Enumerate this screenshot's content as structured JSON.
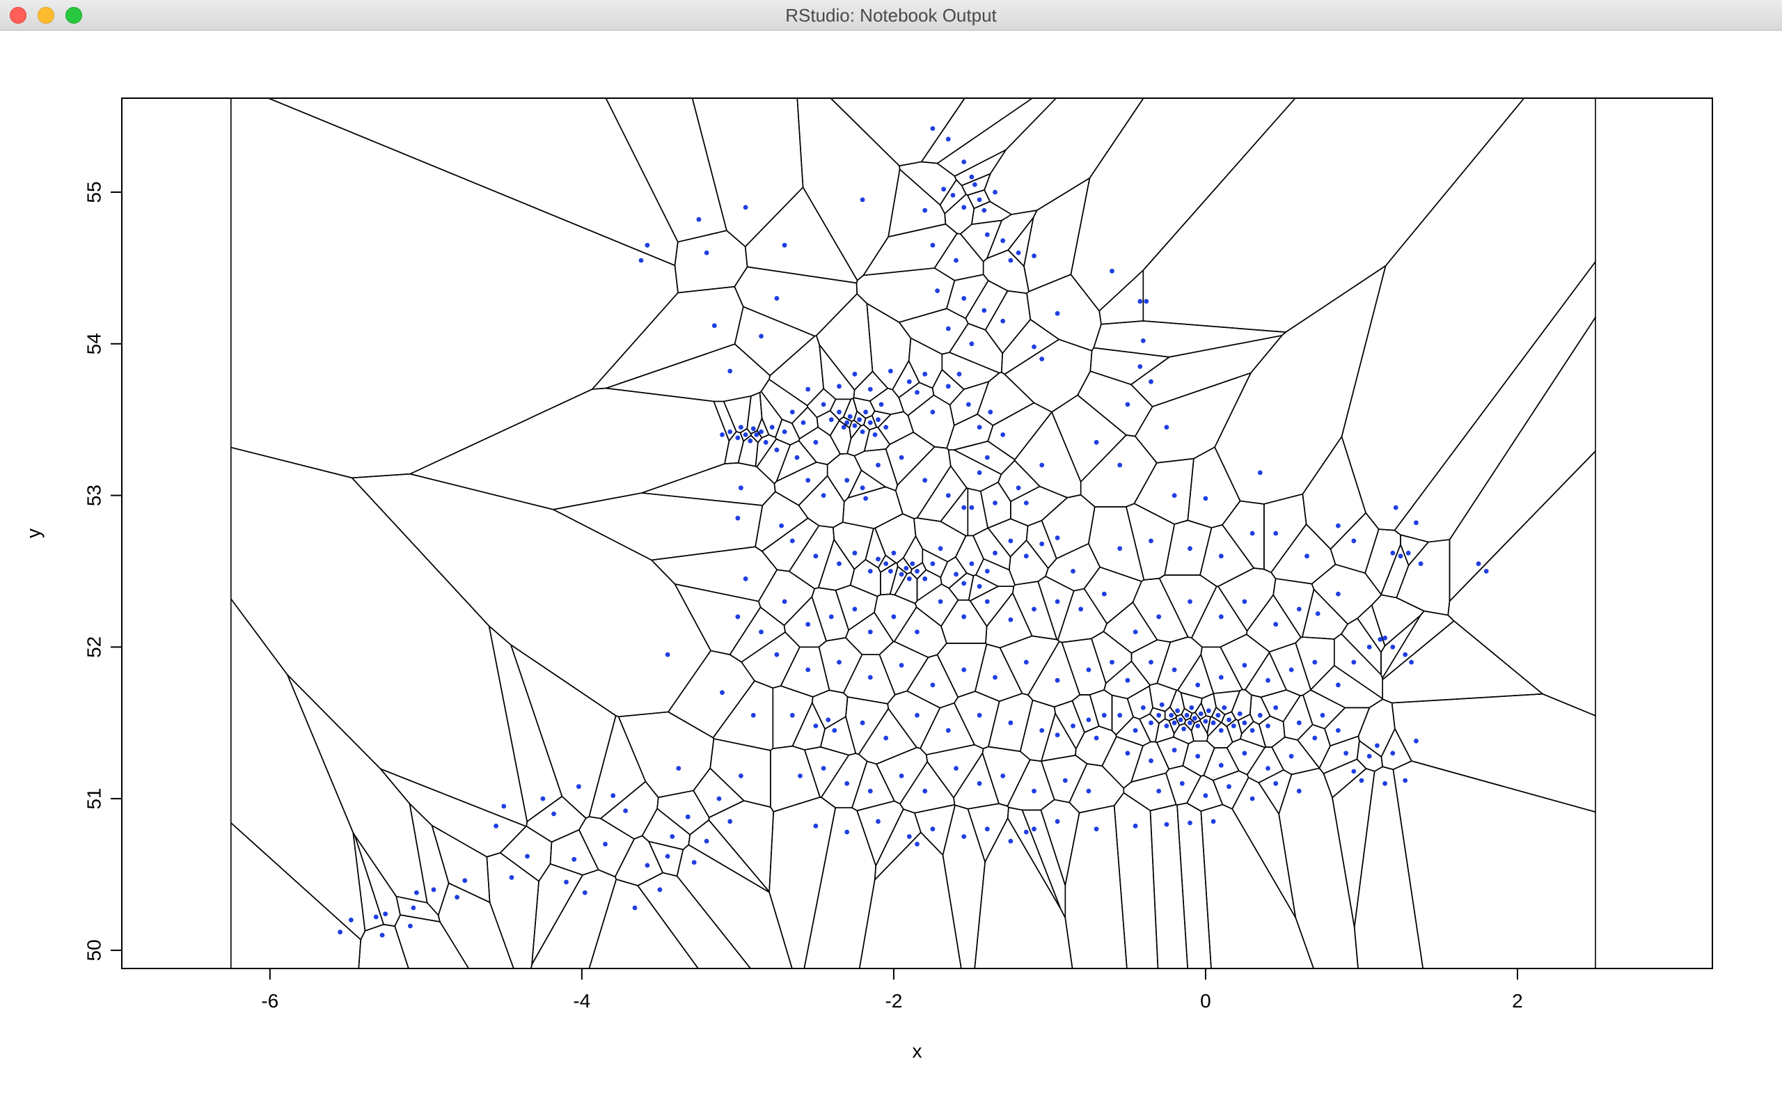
{
  "window": {
    "title": "RStudio: Notebook Output"
  },
  "chart_data": {
    "type": "scatter",
    "title": "",
    "xlabel": "x",
    "ylabel": "y",
    "xlim": [
      -6.95,
      3.25
    ],
    "ylim": [
      49.88,
      55.62
    ],
    "xticks": [
      -6,
      -4,
      -2,
      0,
      2
    ],
    "yticks": [
      50,
      51,
      52,
      53,
      54,
      55
    ],
    "grid": false,
    "point_color": "#1f3fe0",
    "overlay": "voronoi-tessellation",
    "overlay_color": "#000000",
    "overlay_bounds": {
      "x": [
        -6.25,
        2.5
      ],
      "y": [
        49.88,
        55.62
      ]
    },
    "points": [
      [
        -5.55,
        50.12
      ],
      [
        -5.48,
        50.2
      ],
      [
        -5.32,
        50.22
      ],
      [
        -5.28,
        50.1
      ],
      [
        -5.26,
        50.24
      ],
      [
        -5.08,
        50.28
      ],
      [
        -5.06,
        50.38
      ],
      [
        -5.1,
        50.16
      ],
      [
        -4.95,
        50.4
      ],
      [
        -4.8,
        50.35
      ],
      [
        -4.75,
        50.46
      ],
      [
        -4.55,
        50.82
      ],
      [
        -4.5,
        50.95
      ],
      [
        -4.45,
        50.48
      ],
      [
        -4.35,
        50.62
      ],
      [
        -4.25,
        51.0
      ],
      [
        -4.18,
        50.9
      ],
      [
        -4.1,
        50.45
      ],
      [
        -4.05,
        50.6
      ],
      [
        -4.02,
        51.08
      ],
      [
        -3.98,
        50.38
      ],
      [
        -3.85,
        50.7
      ],
      [
        -3.8,
        51.02
      ],
      [
        -3.72,
        50.92
      ],
      [
        -3.66,
        50.28
      ],
      [
        -3.58,
        50.56
      ],
      [
        -3.5,
        50.4
      ],
      [
        -3.45,
        50.62
      ],
      [
        -3.42,
        50.75
      ],
      [
        -3.38,
        51.2
      ],
      [
        -3.32,
        50.88
      ],
      [
        -3.28,
        50.58
      ],
      [
        -3.2,
        50.72
      ],
      [
        -3.12,
        51.0
      ],
      [
        -3.05,
        50.85
      ],
      [
        -2.98,
        51.15
      ],
      [
        -3.45,
        51.95
      ],
      [
        -3.0,
        52.2
      ],
      [
        -2.95,
        52.45
      ],
      [
        -3.0,
        52.85
      ],
      [
        -2.98,
        53.05
      ],
      [
        -2.72,
        52.8
      ],
      [
        -2.85,
        52.1
      ],
      [
        -3.1,
        51.7
      ],
      [
        -2.9,
        51.55
      ],
      [
        -3.05,
        53.82
      ],
      [
        -3.15,
        54.12
      ],
      [
        -2.85,
        54.05
      ],
      [
        -2.75,
        54.3
      ],
      [
        -3.2,
        54.6
      ],
      [
        -3.62,
        54.55
      ],
      [
        -3.58,
        54.65
      ],
      [
        -3.25,
        54.82
      ],
      [
        -2.95,
        54.9
      ],
      [
        -2.7,
        54.65
      ],
      [
        -2.2,
        54.95
      ],
      [
        -1.75,
        55.42
      ],
      [
        -1.65,
        55.35
      ],
      [
        -1.55,
        55.2
      ],
      [
        -1.62,
        54.98
      ],
      [
        -1.5,
        55.1
      ],
      [
        -1.45,
        54.95
      ],
      [
        -1.42,
        54.88
      ],
      [
        -1.35,
        55.0
      ],
      [
        -1.55,
        54.9
      ],
      [
        -1.68,
        55.02
      ],
      [
        -1.48,
        55.05
      ],
      [
        -1.4,
        54.72
      ],
      [
        -1.3,
        54.68
      ],
      [
        -1.25,
        54.55
      ],
      [
        -1.2,
        54.6
      ],
      [
        -1.1,
        54.58
      ],
      [
        -1.6,
        54.55
      ],
      [
        -1.75,
        54.65
      ],
      [
        -1.8,
        54.88
      ],
      [
        -1.72,
        54.35
      ],
      [
        -1.55,
        54.3
      ],
      [
        -1.42,
        54.22
      ],
      [
        -1.65,
        54.1
      ],
      [
        -1.5,
        54.0
      ],
      [
        -1.3,
        54.15
      ],
      [
        -1.1,
        53.98
      ],
      [
        -1.05,
        53.9
      ],
      [
        -0.95,
        54.2
      ],
      [
        -0.6,
        54.48
      ],
      [
        -0.42,
        54.28
      ],
      [
        -0.38,
        54.28
      ],
      [
        -0.4,
        54.02
      ],
      [
        -0.42,
        53.85
      ],
      [
        -0.35,
        53.75
      ],
      [
        -0.5,
        53.6
      ],
      [
        -3.1,
        53.4
      ],
      [
        -3.05,
        53.42
      ],
      [
        -3.0,
        53.38
      ],
      [
        -2.98,
        53.45
      ],
      [
        -2.95,
        53.4
      ],
      [
        -2.92,
        53.36
      ],
      [
        -2.9,
        53.44
      ],
      [
        -2.88,
        53.4
      ],
      [
        -2.85,
        53.42
      ],
      [
        -2.82,
        53.35
      ],
      [
        -2.78,
        53.45
      ],
      [
        -2.75,
        53.3
      ],
      [
        -2.7,
        53.42
      ],
      [
        -2.65,
        53.55
      ],
      [
        -2.62,
        53.25
      ],
      [
        -2.58,
        53.48
      ],
      [
        -2.55,
        53.7
      ],
      [
        -2.5,
        53.35
      ],
      [
        -2.45,
        53.6
      ],
      [
        -2.4,
        53.5
      ],
      [
        -2.35,
        53.55
      ],
      [
        -2.32,
        53.45
      ],
      [
        -2.3,
        53.48
      ],
      [
        -2.28,
        53.52
      ],
      [
        -2.25,
        53.46
      ],
      [
        -2.22,
        53.5
      ],
      [
        -2.2,
        53.42
      ],
      [
        -2.18,
        53.55
      ],
      [
        -2.15,
        53.48
      ],
      [
        -2.12,
        53.4
      ],
      [
        -2.1,
        53.5
      ],
      [
        -2.08,
        53.6
      ],
      [
        -2.05,
        53.45
      ],
      [
        -2.35,
        53.72
      ],
      [
        -2.25,
        53.8
      ],
      [
        -2.15,
        53.7
      ],
      [
        -2.02,
        53.82
      ],
      [
        -1.9,
        53.75
      ],
      [
        -1.85,
        53.68
      ],
      [
        -1.8,
        53.8
      ],
      [
        -1.75,
        53.55
      ],
      [
        -1.65,
        53.72
      ],
      [
        -1.58,
        53.8
      ],
      [
        -1.52,
        53.6
      ],
      [
        -1.45,
        53.45
      ],
      [
        -1.38,
        53.55
      ],
      [
        -1.3,
        53.4
      ],
      [
        -2.55,
        53.1
      ],
      [
        -2.45,
        53.0
      ],
      [
        -2.3,
        53.1
      ],
      [
        -2.2,
        53.05
      ],
      [
        -2.18,
        52.98
      ],
      [
        -2.1,
        53.2
      ],
      [
        -1.95,
        53.25
      ],
      [
        -1.8,
        53.1
      ],
      [
        -1.65,
        53.0
      ],
      [
        -1.55,
        52.92
      ],
      [
        -1.5,
        52.92
      ],
      [
        -1.45,
        53.15
      ],
      [
        -1.4,
        53.25
      ],
      [
        -1.35,
        52.95
      ],
      [
        -1.2,
        53.05
      ],
      [
        -1.15,
        52.95
      ],
      [
        -1.05,
        53.2
      ],
      [
        -2.65,
        52.7
      ],
      [
        -2.5,
        52.6
      ],
      [
        -2.35,
        52.55
      ],
      [
        -2.25,
        52.62
      ],
      [
        -2.15,
        52.5
      ],
      [
        -2.1,
        52.58
      ],
      [
        -2.05,
        52.55
      ],
      [
        -2.02,
        52.5
      ],
      [
        -2.0,
        52.62
      ],
      [
        -1.95,
        52.48
      ],
      [
        -1.92,
        52.52
      ],
      [
        -1.9,
        52.45
      ],
      [
        -1.88,
        52.55
      ],
      [
        -1.85,
        52.5
      ],
      [
        -1.8,
        52.45
      ],
      [
        -1.75,
        52.55
      ],
      [
        -1.7,
        52.65
      ],
      [
        -1.6,
        52.48
      ],
      [
        -1.55,
        52.42
      ],
      [
        -1.5,
        52.55
      ],
      [
        -1.45,
        52.4
      ],
      [
        -1.4,
        52.5
      ],
      [
        -1.35,
        52.62
      ],
      [
        -1.25,
        52.7
      ],
      [
        -1.15,
        52.6
      ],
      [
        -1.05,
        52.68
      ],
      [
        -0.95,
        52.72
      ],
      [
        -0.85,
        52.5
      ],
      [
        -2.7,
        52.3
      ],
      [
        -2.55,
        52.15
      ],
      [
        -2.4,
        52.2
      ],
      [
        -2.25,
        52.25
      ],
      [
        -2.15,
        52.1
      ],
      [
        -2.0,
        52.2
      ],
      [
        -1.85,
        52.1
      ],
      [
        -1.7,
        52.3
      ],
      [
        -1.55,
        52.2
      ],
      [
        -1.4,
        52.3
      ],
      [
        -1.25,
        52.18
      ],
      [
        -1.1,
        52.25
      ],
      [
        -0.95,
        52.3
      ],
      [
        -0.8,
        52.25
      ],
      [
        -0.65,
        52.35
      ],
      [
        -2.75,
        51.95
      ],
      [
        -2.55,
        51.85
      ],
      [
        -2.35,
        51.9
      ],
      [
        -2.15,
        51.8
      ],
      [
        -1.95,
        51.88
      ],
      [
        -1.75,
        51.75
      ],
      [
        -1.55,
        51.85
      ],
      [
        -1.35,
        51.8
      ],
      [
        -1.15,
        51.9
      ],
      [
        -0.95,
        51.78
      ],
      [
        -0.75,
        51.85
      ],
      [
        -0.6,
        51.9
      ],
      [
        -2.65,
        51.55
      ],
      [
        -2.5,
        51.48
      ],
      [
        -2.42,
        51.52
      ],
      [
        -2.38,
        51.45
      ],
      [
        -2.2,
        51.5
      ],
      [
        -2.05,
        51.4
      ],
      [
        -1.85,
        51.55
      ],
      [
        -1.65,
        51.45
      ],
      [
        -1.45,
        51.55
      ],
      [
        -1.25,
        51.5
      ],
      [
        -1.05,
        51.45
      ],
      [
        -0.95,
        51.42
      ],
      [
        -0.85,
        51.48
      ],
      [
        -0.75,
        51.52
      ],
      [
        -0.7,
        51.4
      ],
      [
        -0.65,
        51.55
      ],
      [
        -2.6,
        51.15
      ],
      [
        -2.45,
        51.2
      ],
      [
        -2.3,
        51.1
      ],
      [
        -2.15,
        51.05
      ],
      [
        -1.95,
        51.15
      ],
      [
        -1.8,
        51.05
      ],
      [
        -1.6,
        51.2
      ],
      [
        -1.45,
        51.1
      ],
      [
        -1.3,
        51.15
      ],
      [
        -1.1,
        51.05
      ],
      [
        -0.9,
        51.12
      ],
      [
        -0.75,
        51.05
      ],
      [
        -2.5,
        50.82
      ],
      [
        -2.3,
        50.78
      ],
      [
        -2.1,
        50.85
      ],
      [
        -1.9,
        50.75
      ],
      [
        -1.85,
        50.7
      ],
      [
        -1.75,
        50.8
      ],
      [
        -1.55,
        50.75
      ],
      [
        -1.4,
        50.8
      ],
      [
        -1.25,
        50.72
      ],
      [
        -1.15,
        50.78
      ],
      [
        -1.1,
        50.8
      ],
      [
        -0.95,
        50.85
      ],
      [
        -0.7,
        50.8
      ],
      [
        -0.45,
        50.82
      ],
      [
        -0.25,
        50.83
      ],
      [
        -0.1,
        50.84
      ],
      [
        0.05,
        50.85
      ],
      [
        -0.55,
        51.55
      ],
      [
        -0.45,
        51.45
      ],
      [
        -0.4,
        51.6
      ],
      [
        -0.35,
        51.5
      ],
      [
        -0.3,
        51.55
      ],
      [
        -0.28,
        51.62
      ],
      [
        -0.25,
        51.48
      ],
      [
        -0.22,
        51.55
      ],
      [
        -0.2,
        51.5
      ],
      [
        -0.18,
        51.58
      ],
      [
        -0.16,
        51.52
      ],
      [
        -0.14,
        51.46
      ],
      [
        -0.12,
        51.55
      ],
      [
        -0.1,
        51.5
      ],
      [
        -0.09,
        51.6
      ],
      [
        -0.07,
        51.53
      ],
      [
        -0.05,
        51.48
      ],
      [
        -0.03,
        51.56
      ],
      [
        0.0,
        51.51
      ],
      [
        0.02,
        51.58
      ],
      [
        0.05,
        51.5
      ],
      [
        0.08,
        51.55
      ],
      [
        0.1,
        51.45
      ],
      [
        0.12,
        51.6
      ],
      [
        0.15,
        51.52
      ],
      [
        0.18,
        51.48
      ],
      [
        0.22,
        51.56
      ],
      [
        0.25,
        51.5
      ],
      [
        0.3,
        51.45
      ],
      [
        0.35,
        51.55
      ],
      [
        0.4,
        51.48
      ],
      [
        0.45,
        51.6
      ],
      [
        -0.5,
        51.3
      ],
      [
        -0.35,
        51.25
      ],
      [
        -0.2,
        51.32
      ],
      [
        -0.05,
        51.28
      ],
      [
        0.1,
        51.22
      ],
      [
        0.25,
        51.3
      ],
      [
        0.4,
        51.2
      ],
      [
        0.55,
        51.28
      ],
      [
        -0.3,
        51.05
      ],
      [
        -0.15,
        51.1
      ],
      [
        0.0,
        51.02
      ],
      [
        0.15,
        51.08
      ],
      [
        0.3,
        51.0
      ],
      [
        0.45,
        51.1
      ],
      [
        0.6,
        51.05
      ],
      [
        0.6,
        51.5
      ],
      [
        0.7,
        51.4
      ],
      [
        0.75,
        51.55
      ],
      [
        0.85,
        51.45
      ],
      [
        0.9,
        51.3
      ],
      [
        0.95,
        51.18
      ],
      [
        1.0,
        51.12
      ],
      [
        1.05,
        51.28
      ],
      [
        1.1,
        51.35
      ],
      [
        1.15,
        51.1
      ],
      [
        1.2,
        51.3
      ],
      [
        1.28,
        51.12
      ],
      [
        1.35,
        51.38
      ],
      [
        -0.5,
        51.78
      ],
      [
        -0.35,
        51.9
      ],
      [
        -0.2,
        51.85
      ],
      [
        -0.05,
        51.75
      ],
      [
        0.1,
        51.8
      ],
      [
        0.25,
        51.88
      ],
      [
        0.4,
        51.78
      ],
      [
        0.55,
        51.85
      ],
      [
        0.7,
        51.9
      ],
      [
        0.85,
        51.75
      ],
      [
        0.95,
        51.9
      ],
      [
        1.05,
        52.0
      ],
      [
        1.12,
        52.05
      ],
      [
        1.15,
        52.06
      ],
      [
        1.2,
        52.0
      ],
      [
        1.28,
        51.95
      ],
      [
        1.32,
        51.9
      ],
      [
        -0.45,
        52.1
      ],
      [
        -0.3,
        52.2
      ],
      [
        -0.1,
        52.3
      ],
      [
        0.1,
        52.2
      ],
      [
        0.25,
        52.3
      ],
      [
        0.45,
        52.15
      ],
      [
        0.6,
        52.25
      ],
      [
        0.72,
        52.22
      ],
      [
        0.85,
        52.35
      ],
      [
        -0.55,
        52.65
      ],
      [
        -0.35,
        52.7
      ],
      [
        -0.1,
        52.65
      ],
      [
        0.1,
        52.6
      ],
      [
        0.3,
        52.75
      ],
      [
        0.45,
        52.75
      ],
      [
        0.65,
        52.6
      ],
      [
        0.85,
        52.8
      ],
      [
        0.95,
        52.7
      ],
      [
        1.2,
        52.62
      ],
      [
        1.25,
        52.6
      ],
      [
        1.3,
        52.62
      ],
      [
        1.38,
        52.55
      ],
      [
        1.22,
        52.92
      ],
      [
        1.35,
        52.82
      ],
      [
        1.75,
        52.55
      ],
      [
        1.8,
        52.5
      ],
      [
        -0.2,
        53.0
      ],
      [
        0.0,
        52.98
      ],
      [
        0.35,
        53.15
      ],
      [
        -0.55,
        53.2
      ],
      [
        -0.7,
        53.35
      ],
      [
        -0.25,
        53.45
      ]
    ]
  }
}
